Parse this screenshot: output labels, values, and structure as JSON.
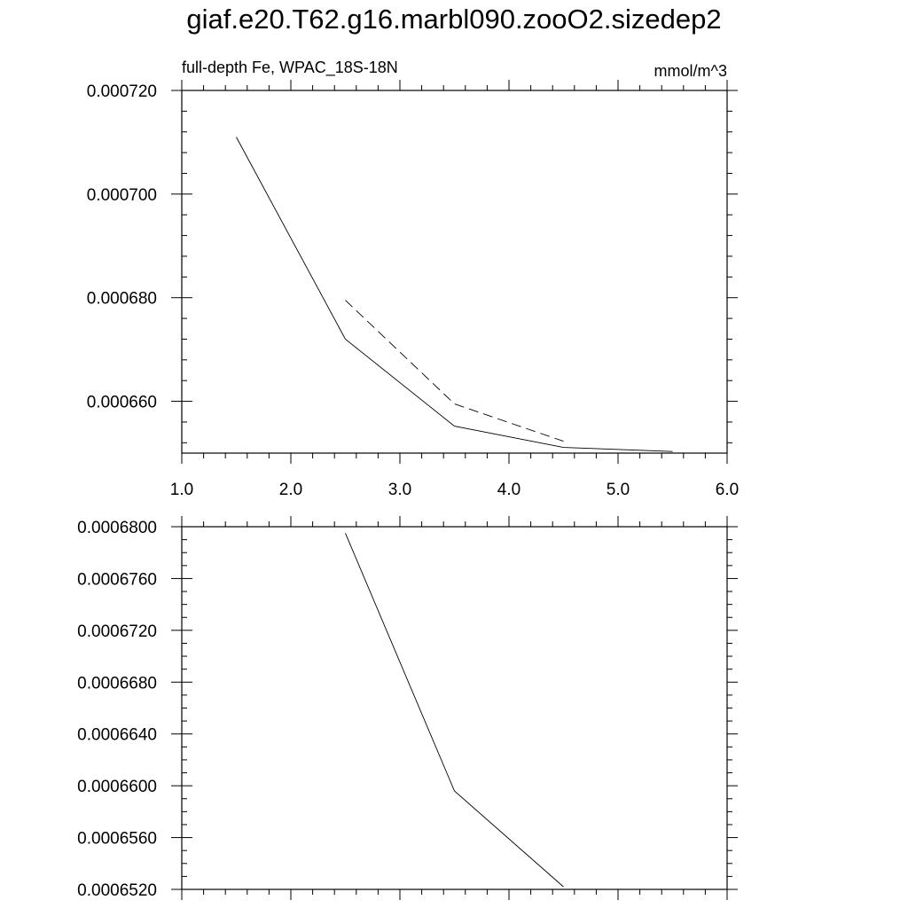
{
  "title": "giaf.e20.T62.g16.marbl090.zooO2.sizedep2",
  "chart_data": [
    {
      "type": "line",
      "subtitle_left": "full-depth Fe, WPAC_18S-18N",
      "subtitle_right": "mmol/m^3",
      "xlim": [
        1.0,
        6.0
      ],
      "ylim": [
        0.00065,
        0.00072
      ],
      "x_ticks": [
        "1.0",
        "2.0",
        "3.0",
        "4.0",
        "5.0",
        "6.0"
      ],
      "y_ticks": [
        "0.000660",
        "0.000680",
        "0.000700",
        "0.000720"
      ],
      "series": [
        {
          "style": "solid",
          "x": [
            1.5,
            2.5,
            3.5,
            4.5,
            5.5
          ],
          "y": [
            0.000711,
            0.000672,
            0.0006552,
            0.0006511,
            0.0006503
          ]
        },
        {
          "style": "dashed",
          "x": [
            2.5,
            3.5,
            4.5
          ],
          "y": [
            0.0006795,
            0.0006595,
            0.0006523
          ]
        }
      ]
    },
    {
      "type": "line",
      "xlim": [
        1.0,
        6.0
      ],
      "ylim": [
        0.000652,
        0.00068
      ],
      "y_ticks": [
        "0.0006520",
        "0.0006560",
        "0.0006600",
        "0.0006640",
        "0.0006680",
        "0.0006720",
        "0.0006760",
        "0.0006800"
      ],
      "series": [
        {
          "style": "solid",
          "x": [
            2.5,
            3.5,
            4.5
          ],
          "y": [
            0.0006795,
            0.0006596,
            0.0006522
          ]
        }
      ]
    }
  ]
}
